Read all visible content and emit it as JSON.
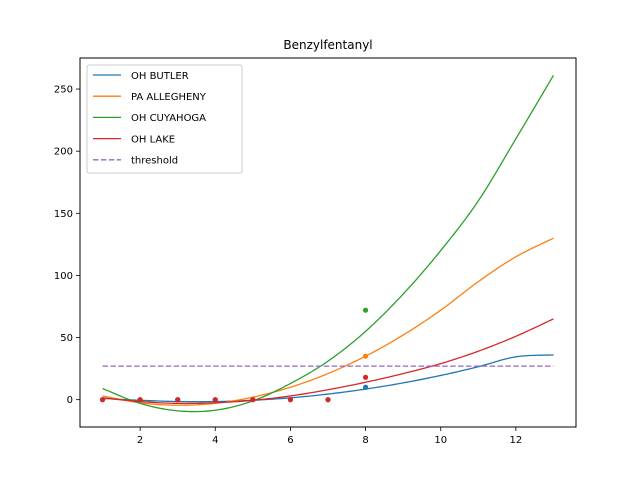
{
  "chart_data": {
    "type": "line",
    "title": "Benzylfentanyl",
    "xlabel": "",
    "ylabel": "",
    "xlim": [
      0.4,
      13.6
    ],
    "ylim": [
      -22,
      275
    ],
    "xticks": [
      2,
      4,
      6,
      8,
      10,
      12
    ],
    "yticks": [
      0,
      50,
      100,
      150,
      200,
      250
    ],
    "grid": false,
    "legend_position": "top-left",
    "series": [
      {
        "name": "OH BUTLER",
        "color": "#1f77b4",
        "style": "solid",
        "curve": {
          "x": [
            1,
            2,
            3,
            4,
            5,
            6,
            7,
            8,
            9,
            10,
            11,
            12,
            13
          ],
          "y": [
            1,
            -0.5,
            -1.5,
            -1.5,
            -0.5,
            1.5,
            4.5,
            8.5,
            13.5,
            19.5,
            26.5,
            34.5,
            36
          ]
        },
        "points": {
          "x": [
            1,
            2,
            3,
            4,
            5,
            6,
            7,
            8
          ],
          "y": [
            0,
            0,
            0,
            0,
            0,
            0,
            0,
            10
          ]
        }
      },
      {
        "name": "PA ALLEGHENY",
        "color": "#ff7f0e",
        "style": "solid",
        "curve": {
          "x": [
            1,
            2,
            3,
            4,
            5,
            6,
            7,
            8,
            9,
            10,
            11,
            12,
            13
          ],
          "y": [
            3,
            -2.5,
            -4.5,
            -3,
            2,
            10,
            21,
            35,
            52,
            72,
            95,
            115,
            130
          ]
        },
        "points": {
          "x": [
            8
          ],
          "y": [
            35
          ]
        }
      },
      {
        "name": "OH CUYAHOGA",
        "color": "#2ca02c",
        "style": "solid",
        "curve": {
          "x": [
            1,
            2,
            3,
            4,
            5,
            6,
            7,
            8,
            9,
            10,
            11,
            12,
            13
          ],
          "y": [
            9,
            -3,
            -9,
            -8.5,
            -1,
            13,
            31,
            55,
            85,
            120,
            160,
            210,
            261
          ]
        },
        "points": {
          "x": [
            8
          ],
          "y": [
            72
          ]
        }
      },
      {
        "name": "OH LAKE",
        "color": "#d62728",
        "style": "solid",
        "curve": {
          "x": [
            1,
            2,
            3,
            4,
            5,
            6,
            7,
            8,
            9,
            10,
            11,
            12,
            13
          ],
          "y": [
            1.5,
            -1.5,
            -3,
            -2.5,
            -0.5,
            3,
            8,
            14,
            21,
            29,
            39,
            51,
            65
          ]
        },
        "points": {
          "x": [
            1,
            2,
            3,
            4,
            5,
            6,
            7,
            8
          ],
          "y": [
            0,
            0,
            0,
            0,
            0,
            0,
            0,
            18
          ]
        }
      },
      {
        "name": "threshold",
        "color": "#9467bd",
        "style": "dashed",
        "curve": {
          "x": [
            1,
            13
          ],
          "y": [
            27,
            27
          ]
        },
        "points": null
      }
    ]
  }
}
